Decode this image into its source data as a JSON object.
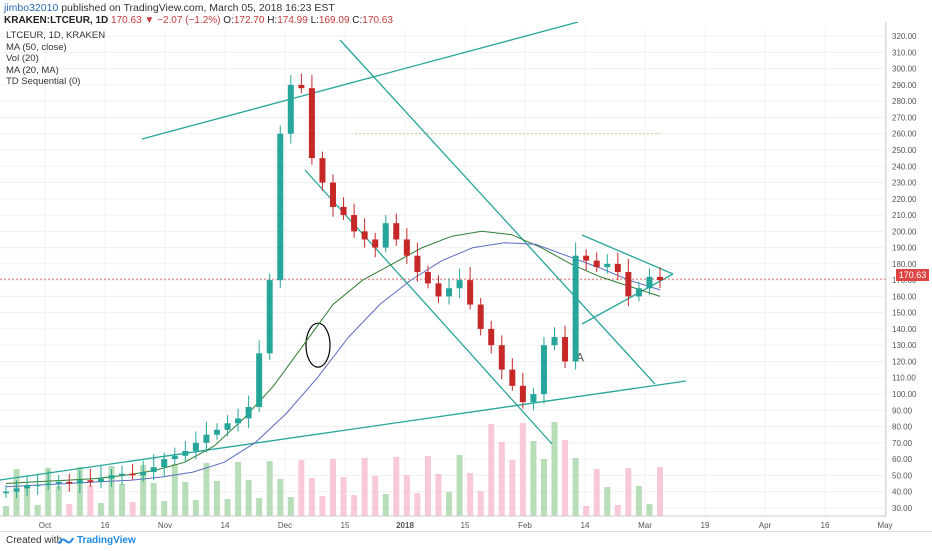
{
  "header": {
    "author": "jimbo32010",
    "published": "published on TradingView.com, March 05, 2018 16:23 EST",
    "symbol": "KRAKEN:LTCEUR, 1D",
    "last": "170.63",
    "change": "▼ −2.07 (−1.2%)",
    "o_label": "O:",
    "o_val": "172.70",
    "h_label": "H:",
    "h_val": "174.99",
    "l_label": "L:",
    "l_val": "169.09",
    "c_label": "C:",
    "c_val": "170.63"
  },
  "legend": {
    "title": "LTCEUR, 1D, KRAKEN",
    "items": [
      "MA (50, close)",
      "Vol (20)",
      "MA (20, MA)",
      "TD Sequential (0)"
    ]
  },
  "price_tag": "170.63",
  "footer": {
    "created_with": "Created with",
    "brand": "TradingView"
  },
  "colors": {
    "up": "#26a69a",
    "down": "#c62828",
    "trendline": "#26a69a",
    "ma50": "#2e7d32",
    "ma_blue": "#5c6bc0",
    "vol_ma": "#f4a261",
    "vol_up": "#a5d6a7",
    "vol_down": "#f8bbd0"
  },
  "chart_data": {
    "type": "candlestick",
    "y_ticks": [
      30,
      40,
      50,
      60,
      70,
      80,
      90,
      100,
      110,
      120,
      130,
      140,
      150,
      160,
      170,
      180,
      190,
      200,
      210,
      220,
      230,
      240,
      250,
      260,
      270,
      280,
      290,
      300,
      310,
      320
    ],
    "ylim": [
      25,
      325
    ],
    "x_ticks": [
      "Oct",
      "16",
      "Nov",
      "14",
      "Dec",
      "15",
      "2018",
      "15",
      "Feb",
      "14",
      "Mar",
      "19",
      "Apr",
      "16",
      "May"
    ],
    "last_price": 170.63,
    "series": [
      {
        "name": "MA (50, close)",
        "approx": [
          45,
          46,
          47,
          48,
          50,
          53,
          58,
          68,
          85,
          105,
          130,
          155,
          170,
          180,
          190,
          197,
          200,
          198,
          190,
          180,
          172,
          166,
          160
        ]
      },
      {
        "name": "MA (20, MA)",
        "approx": [
          43,
          44,
          45,
          46,
          47,
          49,
          52,
          58,
          70,
          88,
          110,
          135,
          155,
          170,
          182,
          190,
          193,
          192,
          185,
          178,
          170,
          164
        ]
      }
    ],
    "annotations": [
      "A"
    ],
    "candles_approx_close": [
      40,
      42,
      44,
      44,
      45,
      46,
      45,
      47,
      46,
      48,
      50,
      51,
      50,
      52,
      55,
      60,
      62,
      65,
      70,
      75,
      78,
      82,
      85,
      92,
      125,
      170,
      260,
      290,
      288,
      245,
      230,
      215,
      210,
      200,
      195,
      190,
      205,
      195,
      185,
      175,
      168,
      160,
      165,
      170,
      155,
      140,
      130,
      115,
      105,
      95,
      100,
      130,
      135,
      120,
      185,
      182,
      178,
      180,
      175,
      160,
      165,
      172,
      170
    ]
  }
}
